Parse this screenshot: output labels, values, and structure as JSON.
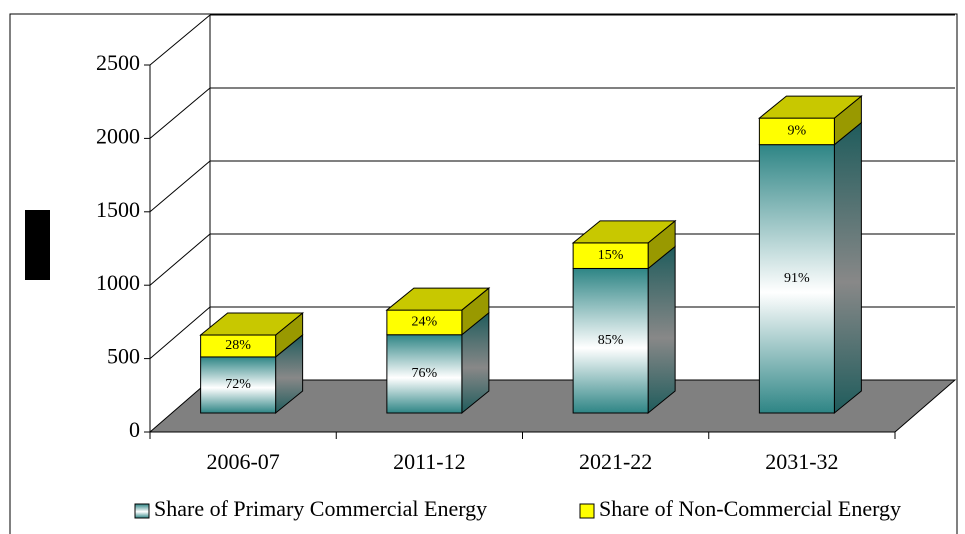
{
  "chart_data": {
    "type": "bar3d_stacked",
    "categories": [
      "2006-07",
      "2011-12",
      "2021-22",
      "2031-32"
    ],
    "series": [
      {
        "name": "Share of Primary Commercial Energy",
        "color": "#2e8585",
        "values": [
          384,
          536,
          990,
          1838
        ],
        "value_labels": [
          "72%",
          "76%",
          "85%",
          "91%"
        ]
      },
      {
        "name": "Share of Non-Commercial Energy",
        "color": "#ffff00",
        "values": [
          150,
          169,
          175,
          182
        ],
        "value_labels": [
          "28%",
          "24%",
          "15%",
          "9%"
        ]
      }
    ],
    "ylim": [
      0,
      2500
    ],
    "yticks": [
      0,
      500,
      1000,
      1500,
      2000,
      2500
    ],
    "grid": true,
    "legend": "bottom"
  }
}
